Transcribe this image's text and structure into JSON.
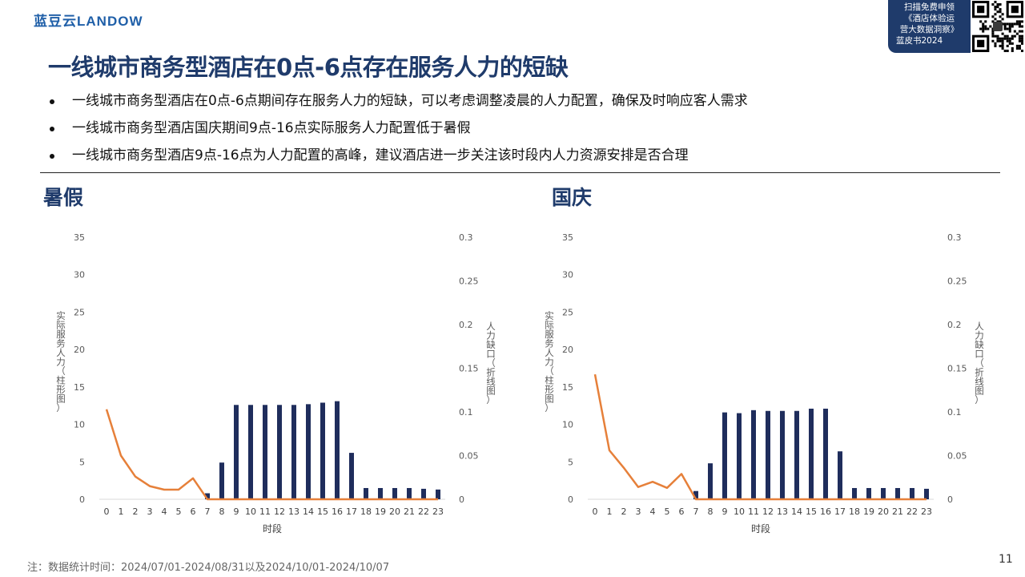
{
  "brand": {
    "logo_text": "蓝豆云LANDOW"
  },
  "promo": {
    "line1": "扫描免费申领",
    "line2": "《酒店体验运",
    "line3": "营大数据洞察》",
    "line4": "蓝皮书2024"
  },
  "title": "一线城市商务型酒店在0点-6点存在服务人力的短缺",
  "bullets": [
    "一线城市商务型酒店在0点-6点期间存在服务人力的短缺，可以考虑调整凌晨的人力配置，确保及时响应客人需求",
    "一线城市商务型酒店国庆期间9点-16点实际服务人力配置低于暑假",
    "一线城市商务型酒店9点-16点为人力配置的高峰，建议酒店进一步关注该时段内人力资源安排是否合理"
  ],
  "sections": {
    "left": "暑假",
    "right": "国庆"
  },
  "colors": {
    "bar": "#1f2d5c",
    "line": "#e6803a",
    "title": "#1f3b6b"
  },
  "chart_data": [
    {
      "type": "bar+line",
      "title": "暑假",
      "xlabel": "时段",
      "ylabel_left": "实际服务人力（柱形图）",
      "ylabel_right": "人力缺口（折线图）",
      "categories": [
        "0",
        "1",
        "2",
        "3",
        "4",
        "5",
        "6",
        "7",
        "8",
        "9",
        "10",
        "11",
        "12",
        "13",
        "14",
        "15",
        "16",
        "17",
        "18",
        "19",
        "20",
        "21",
        "22",
        "23"
      ],
      "ylim_left": [
        0,
        35
      ],
      "yticks_left": [
        "0",
        "5",
        "10",
        "15",
        "20",
        "25",
        "30",
        "35"
      ],
      "ylim_right": [
        0,
        0.3
      ],
      "yticks_right": [
        "0",
        "0.05",
        "0.1",
        "0.15",
        "0.2",
        "0.25",
        "0.3"
      ],
      "bars": [
        0,
        0,
        0,
        0,
        0,
        0,
        0,
        0.8,
        4.9,
        12.6,
        12.6,
        12.6,
        12.6,
        12.6,
        12.7,
        12.9,
        13.1,
        6.2,
        1.5,
        1.5,
        1.5,
        1.5,
        1.4,
        1.3
      ],
      "line": [
        0.103,
        0.05,
        0.026,
        0.015,
        0.011,
        0.011,
        0.024,
        0,
        0,
        0,
        0,
        0,
        0,
        0,
        0,
        0,
        0,
        0,
        0,
        0,
        0,
        0,
        0,
        0
      ]
    },
    {
      "type": "bar+line",
      "title": "国庆",
      "xlabel": "时段",
      "ylabel_left": "实际服务人力（柱形图）",
      "ylabel_right": "人力缺口（折线图）",
      "categories": [
        "0",
        "1",
        "2",
        "3",
        "4",
        "5",
        "6",
        "7",
        "8",
        "9",
        "10",
        "11",
        "12",
        "13",
        "14",
        "15",
        "16",
        "17",
        "18",
        "19",
        "20",
        "21",
        "22",
        "23"
      ],
      "ylim_left": [
        0,
        35
      ],
      "yticks_left": [
        "0",
        "5",
        "10",
        "15",
        "20",
        "25",
        "30",
        "35"
      ],
      "ylim_right": [
        0,
        0.3
      ],
      "yticks_right": [
        "0",
        "0.05",
        "0.1",
        "0.15",
        "0.2",
        "0.25",
        "0.3"
      ],
      "bars": [
        0,
        0,
        0,
        0,
        0,
        0,
        0,
        1.1,
        4.8,
        11.6,
        11.5,
        11.9,
        11.8,
        11.8,
        11.8,
        12.1,
        12.1,
        6.4,
        1.5,
        1.5,
        1.5,
        1.5,
        1.5,
        1.4
      ],
      "line": [
        0.143,
        0.056,
        0.036,
        0.014,
        0.02,
        0.013,
        0.029,
        0,
        0,
        0,
        0,
        0,
        0,
        0,
        0,
        0,
        0,
        0,
        0,
        0,
        0,
        0,
        0,
        0
      ]
    }
  ],
  "note": "注：数据统计时间：2024/07/01-2024/08/31以及2024/10/01-2024/10/07",
  "page_number": "11"
}
